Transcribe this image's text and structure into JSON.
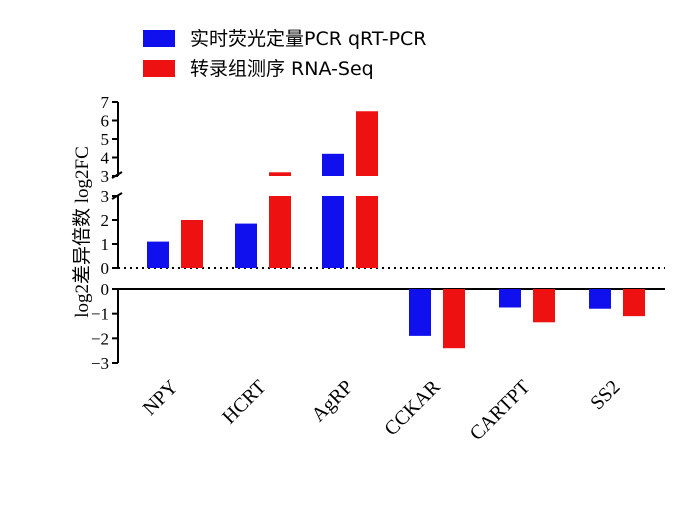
{
  "chart_data": {
    "type": "bar",
    "categories": [
      "NPY",
      "HCRT",
      "AgRP",
      "CCKAR",
      "CARTPT",
      "SS2"
    ],
    "series": [
      {
        "name": "实时荧光定量PCR qRT-PCR",
        "color": "#1010ee",
        "values": [
          1.1,
          1.85,
          4.2,
          -1.9,
          -0.75,
          -0.8
        ]
      },
      {
        "name": "转录组测序  RNA-Seq",
        "color": "#ee1111",
        "values": [
          2.0,
          3.2,
          6.5,
          -2.4,
          -1.35,
          -1.1
        ]
      }
    ],
    "ylabel": "log2差异倍数 log2FC",
    "ylim": [
      -3,
      7
    ],
    "axis_break": [
      3,
      3
    ],
    "yticks_top": [
      3,
      4,
      5,
      6,
      7
    ],
    "yticks_mid": [
      0,
      1,
      2,
      3
    ],
    "yticks_bottom": [
      -3,
      -2,
      -1,
      0
    ],
    "reference_line": 0,
    "legend_position": "top"
  }
}
